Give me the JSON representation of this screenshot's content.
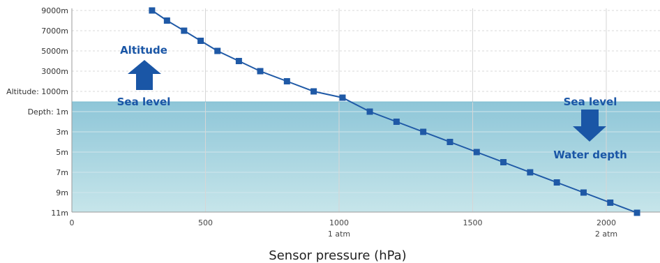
{
  "chart_data": {
    "type": "line",
    "title": "",
    "xlabel": "Sensor pressure (hPa)",
    "ylabel": "",
    "xlim": [
      0,
      2200
    ],
    "x_ticks": [
      {
        "value": 0,
        "label": "0",
        "sublabel": ""
      },
      {
        "value": 500,
        "label": "500",
        "sublabel": ""
      },
      {
        "value": 1000,
        "label": "1000",
        "sublabel": "1 atm"
      },
      {
        "value": 1500,
        "label": "1500",
        "sublabel": ""
      },
      {
        "value": 2000,
        "label": "2000",
        "sublabel": "2 atm"
      }
    ],
    "y_ticks": [
      "9000m",
      "7000m",
      "5000m",
      "3000m",
      "Altitude: 1000m",
      "Depth: 1m",
      "3m",
      "5m",
      "7m",
      "9m",
      "11m"
    ],
    "altitude_series": {
      "x": [
        300,
        356,
        420,
        482,
        545,
        625,
        705,
        805,
        905
      ],
      "altitude_m": [
        9000,
        8000,
        7000,
        6000,
        5000,
        4000,
        3000,
        2000,
        1000
      ]
    },
    "sea_level_point": {
      "x": 1013,
      "value_m": 0
    },
    "depth_series": {
      "x": [
        1115,
        1215,
        1315,
        1415,
        1515,
        1615,
        1715,
        1815,
        1915,
        2015,
        2115
      ],
      "depth_m": [
        1,
        2,
        3,
        4,
        5,
        6,
        7,
        8,
        9,
        10,
        11
      ]
    },
    "colors": {
      "line": "#1f59a6",
      "marker": "#1f59a6",
      "water_top": "#8ec6d8",
      "water_bottom": "#c6e5ea",
      "grid": "#d7d7d7",
      "annotation": "#1a56a6"
    },
    "grid": true
  },
  "annotations": {
    "altitude": "Altitude",
    "sea_level_left": "Sea level",
    "sea_level_right": "Sea level",
    "water_depth": "Water depth"
  }
}
